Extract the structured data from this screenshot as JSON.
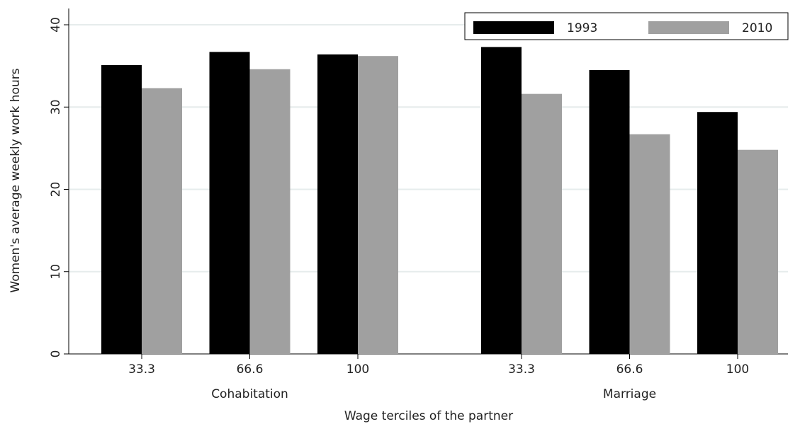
{
  "chart_data": {
    "type": "bar",
    "x_label": "Wage terciles of the partner",
    "y_label": "Women's average weekly work hours",
    "groups": [
      {
        "name": "Cohabitation",
        "categories": [
          "33.3",
          "66.6",
          "100"
        ]
      },
      {
        "name": "Marriage",
        "categories": [
          "33.3",
          "66.6",
          "100"
        ]
      }
    ],
    "series": [
      {
        "name": "1993",
        "color": "#000000",
        "values": [
          35.1,
          36.7,
          36.4,
          37.3,
          34.5,
          29.4
        ]
      },
      {
        "name": "2010",
        "color": "#a0a0a0",
        "values": [
          32.3,
          34.6,
          36.2,
          31.6,
          26.7,
          24.8
        ]
      }
    ],
    "ylim": [
      0,
      40
    ],
    "yticks": [
      0,
      10,
      20,
      30,
      40
    ],
    "grid": true,
    "legend": "top-right"
  }
}
